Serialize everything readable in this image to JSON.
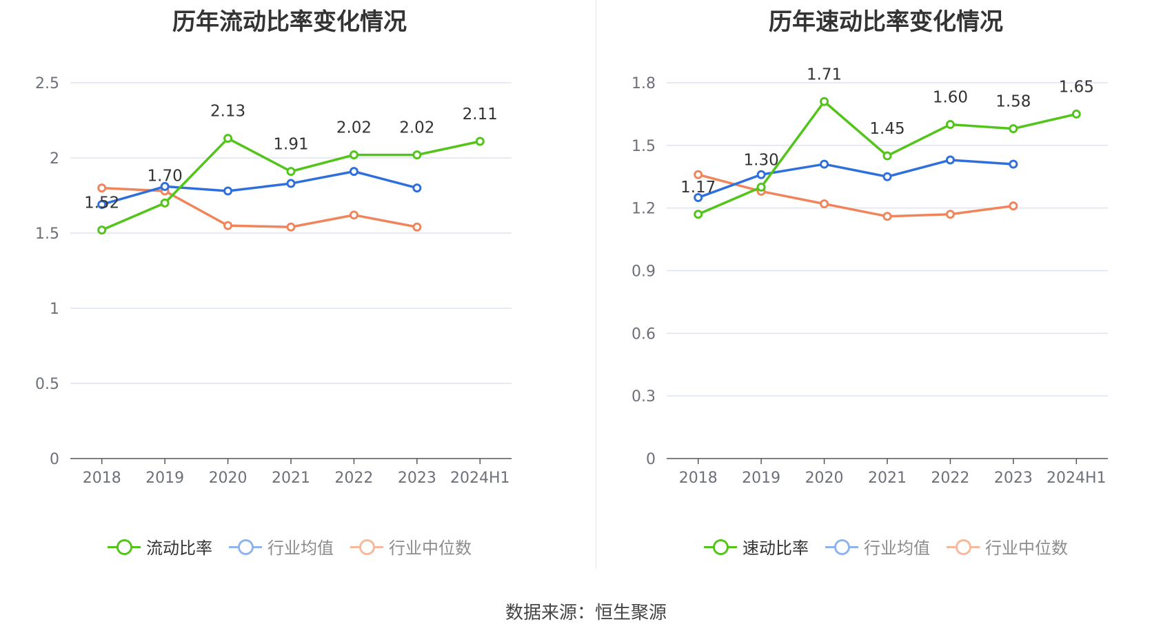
{
  "source_label": "数据来源：恒生聚源",
  "colors": {
    "green": "#52c41a",
    "blue": "#2f6fdb",
    "orange": "#f0845a",
    "grid": "#dde3f0",
    "axis": "#555555"
  },
  "chart_data": [
    {
      "type": "line",
      "title": "历年流动比率变化情况",
      "categories": [
        "2018",
        "2019",
        "2020",
        "2021",
        "2022",
        "2023",
        "2024H1"
      ],
      "ylim": [
        0,
        2.5
      ],
      "yticks": [
        "0",
        "0.5",
        "1",
        "1.5",
        "2",
        "2.5"
      ],
      "grid": true,
      "legend_position": "bottom",
      "series": [
        {
          "name": "流动比率",
          "values": [
            1.52,
            1.7,
            2.13,
            1.91,
            2.02,
            2.02,
            2.11
          ],
          "labels": [
            "1.52",
            "1.70",
            "2.13",
            "1.91",
            "2.02",
            "2.02",
            "2.11"
          ],
          "color": "#52c41a"
        },
        {
          "name": "行业均值",
          "values": [
            1.69,
            1.81,
            1.78,
            1.83,
            1.91,
            1.8,
            null
          ],
          "color": "#2f6fdb"
        },
        {
          "name": "行业中位数",
          "values": [
            1.8,
            1.78,
            1.55,
            1.54,
            1.62,
            1.54,
            null
          ],
          "color": "#f0845a"
        }
      ]
    },
    {
      "type": "line",
      "title": "历年速动比率变化情况",
      "categories": [
        "2018",
        "2019",
        "2020",
        "2021",
        "2022",
        "2023",
        "2024H1"
      ],
      "ylim": [
        0,
        1.8
      ],
      "yticks": [
        "0",
        "0.3",
        "0.6",
        "0.9",
        "1.2",
        "1.5",
        "1.8"
      ],
      "grid": true,
      "legend_position": "bottom",
      "series": [
        {
          "name": "速动比率",
          "values": [
            1.17,
            1.3,
            1.71,
            1.45,
            1.6,
            1.58,
            1.65
          ],
          "labels": [
            "1.17",
            "1.30",
            "1.71",
            "1.45",
            "1.60",
            "1.58",
            "1.65"
          ],
          "color": "#52c41a"
        },
        {
          "name": "行业均值",
          "values": [
            1.25,
            1.36,
            1.41,
            1.35,
            1.43,
            1.41,
            null
          ],
          "color": "#2f6fdb"
        },
        {
          "name": "行业中位数",
          "values": [
            1.36,
            1.28,
            1.22,
            1.16,
            1.17,
            1.21,
            null
          ],
          "color": "#f0845a"
        }
      ]
    }
  ]
}
